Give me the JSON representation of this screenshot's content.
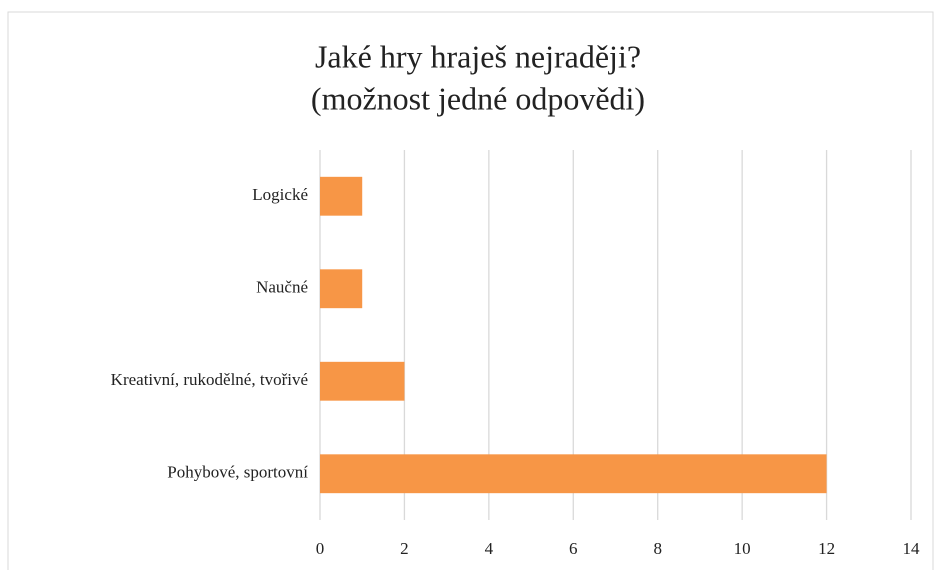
{
  "chart_data": {
    "type": "hbar",
    "title": "Jaké hry hraješ nejraději?",
    "subtitle": "(možnost jedné odpovědi)",
    "categories": [
      "Logické",
      "Naučné",
      "Kreativní, rukodělné, tvořivé",
      "Pohybové, sportovní"
    ],
    "values": [
      1,
      1,
      2,
      12
    ],
    "color": "#f79646",
    "xlim": [
      0,
      14
    ],
    "xticks": [
      0,
      2,
      4,
      6,
      8,
      10,
      12,
      14
    ],
    "grid": true
  }
}
